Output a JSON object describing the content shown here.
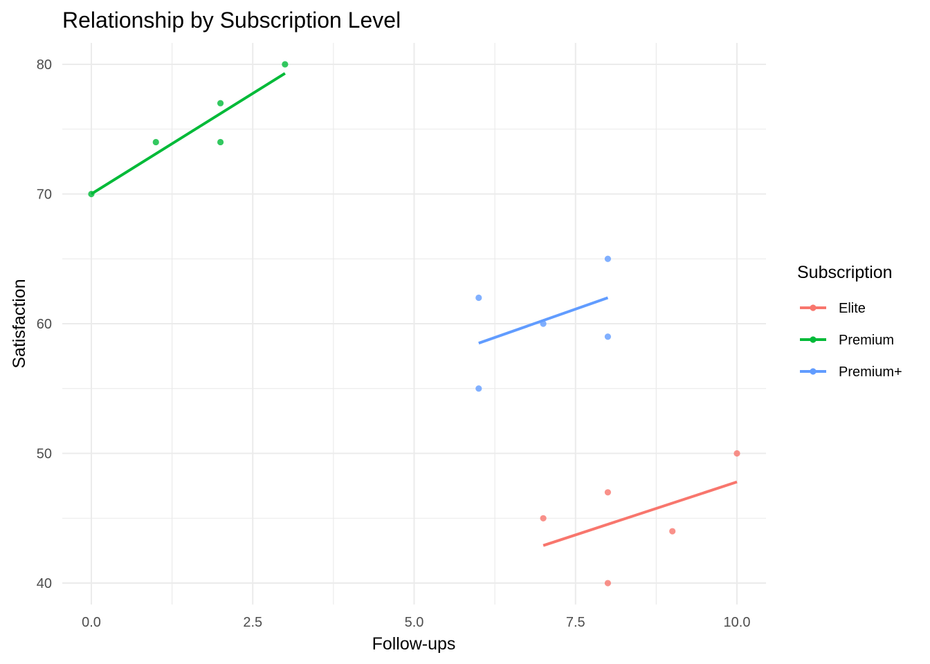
{
  "chart_data": {
    "type": "scatter",
    "title": "Relationship by Subscription Level",
    "xlabel": "Follow-ups",
    "ylabel": "Satisfaction",
    "xlim": [
      -0.45,
      10.45
    ],
    "ylim": [
      38.35,
      81.65
    ],
    "xticks": [
      0,
      2.5,
      5,
      7.5,
      10
    ],
    "xtick_labels": [
      "0.0",
      "2.5",
      "5.0",
      "7.5",
      "10.0"
    ],
    "yticks": [
      40,
      50,
      60,
      70,
      80
    ],
    "ytick_labels": [
      "40",
      "50",
      "60",
      "70",
      "80"
    ],
    "grid": true,
    "legend": {
      "title": "Subscription",
      "position": "right"
    },
    "series": [
      {
        "name": "Elite",
        "color": "#F8766D",
        "points": [
          [
            7,
            45
          ],
          [
            8,
            40
          ],
          [
            8,
            47
          ],
          [
            9,
            44
          ],
          [
            10,
            50
          ]
        ],
        "fit": [
          [
            7,
            42.9
          ],
          [
            10,
            47.8
          ]
        ]
      },
      {
        "name": "Premium",
        "color": "#00BA38",
        "points": [
          [
            0,
            70
          ],
          [
            1,
            74
          ],
          [
            2,
            77
          ],
          [
            2,
            74
          ],
          [
            3,
            80
          ]
        ],
        "fit": [
          [
            0,
            70.0
          ],
          [
            3,
            79.3
          ]
        ]
      },
      {
        "name": "Premium+",
        "color": "#619CFF",
        "points": [
          [
            6,
            55
          ],
          [
            6,
            62
          ],
          [
            7,
            60
          ],
          [
            8,
            65
          ],
          [
            8,
            59
          ]
        ],
        "fit": [
          [
            6,
            58.5
          ],
          [
            8,
            62.0
          ]
        ]
      }
    ]
  }
}
